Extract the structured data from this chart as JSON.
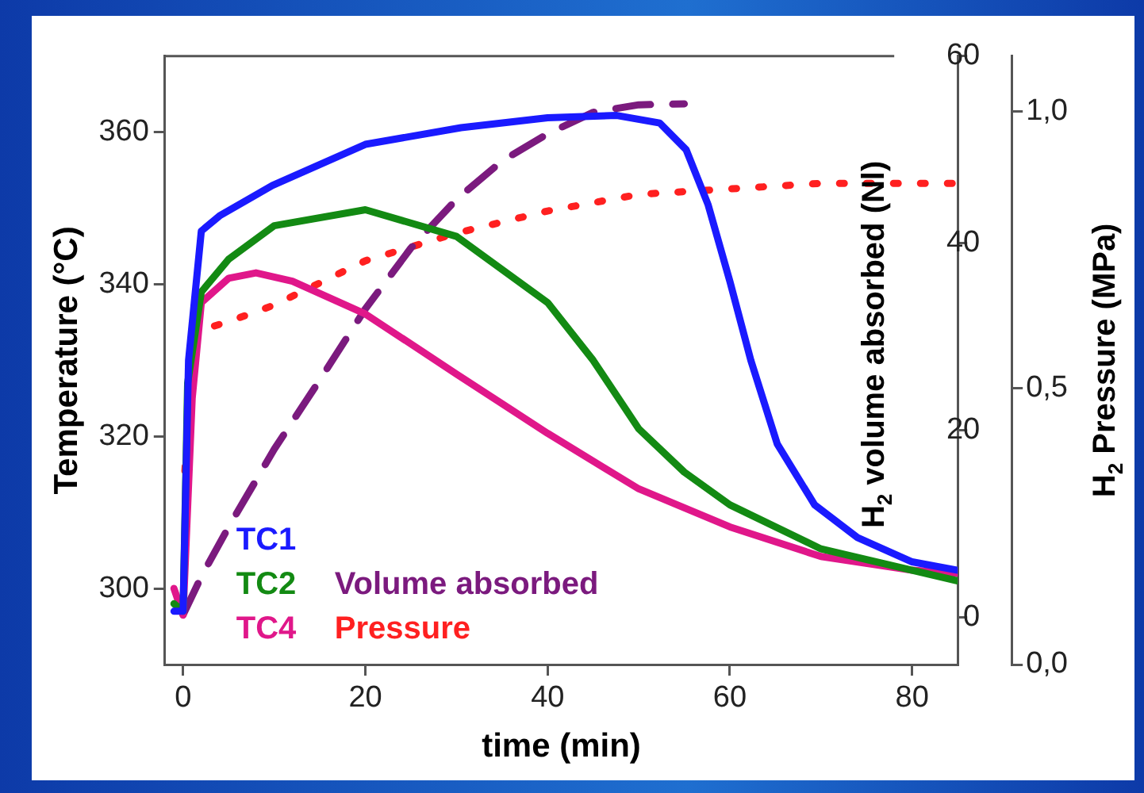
{
  "chart_data": {
    "type": "line",
    "xlabel": "time (min)",
    "ylabel": "Temperature (°C)",
    "y2label": "H$_{2}$ volume absorbed (Nl)",
    "y3label": "H$_{2}$ Pressure (MPa)",
    "xlim": [
      -2,
      85
    ],
    "xticks": [
      0,
      20,
      40,
      60,
      80
    ],
    "ylim": [
      290,
      370
    ],
    "yticks": [
      300,
      320,
      340,
      360
    ],
    "y2lim": [
      -5,
      60
    ],
    "y2ticks": [
      0,
      20,
      40,
      60
    ],
    "y3lim": [
      0,
      1.1
    ],
    "y3ticks": [
      {
        "value": 0,
        "label": "0,0"
      },
      {
        "value": 0.5,
        "label": "0,5"
      },
      {
        "value": 1,
        "label": "1,0"
      }
    ],
    "legend": "bottom left",
    "grid": false,
    "series": [
      {
        "name": "TC1",
        "color": "#1a1aff",
        "line_style": "solid",
        "x": [
          -1,
          0,
          0.6,
          2,
          4,
          9.8,
          20,
          30.5,
          40,
          47.6,
          52.3,
          55.2,
          57.6,
          60,
          62.3,
          65.2,
          69.3,
          74,
          80,
          85
        ],
        "values": [
          297,
          297,
          330,
          347,
          349,
          353,
          358.4,
          360.6,
          361.9,
          362.2,
          361.2,
          357.7,
          350.5,
          340.4,
          330,
          319,
          311,
          306.7,
          303.5,
          302.4
        ]
      },
      {
        "name": "TC2",
        "color": "#138a13",
        "line_style": "solid",
        "x": [
          -1,
          0,
          0.5,
          2,
          5,
          10,
          20,
          30,
          40,
          45,
          50,
          55,
          60,
          70,
          80,
          85
        ],
        "values": [
          298,
          297,
          327,
          339,
          343.3,
          347.7,
          349.8,
          346.3,
          337.6,
          330,
          321,
          315.3,
          311,
          305.2,
          302.4,
          301
        ]
      },
      {
        "name": "TC4",
        "color": "#e0178a",
        "line_style": "solid",
        "x": [
          -1,
          0,
          1,
          2,
          5,
          8,
          12,
          20,
          30,
          40,
          50,
          60,
          70,
          80,
          85
        ],
        "values": [
          300,
          296.5,
          325,
          337.6,
          340.8,
          341.5,
          340.4,
          336.1,
          328.2,
          320.4,
          313.1,
          308.1,
          304.2,
          302.4,
          302
        ]
      },
      {
        "name": "Volume absorbed",
        "color": "#7b1a7e",
        "line_style": "dashed",
        "axis": "y2",
        "x": [
          0,
          2,
          5,
          10,
          15,
          20,
          25,
          30,
          35,
          40,
          45,
          50,
          55
        ],
        "values": [
          0.3,
          4.4,
          9.7,
          18,
          25.4,
          33,
          39.5,
          44.7,
          48.8,
          51.7,
          54,
          54.8,
          54.9
        ]
      },
      {
        "name": "Pressure",
        "color": "#ff2020",
        "line_style": "dotted",
        "axis": "y3",
        "x": [
          0.2,
          0.5,
          1,
          5,
          10,
          15,
          20,
          30,
          40,
          50,
          60,
          70,
          85
        ],
        "values": [
          0.35,
          0.42,
          0.6,
          0.62,
          0.65,
          0.69,
          0.73,
          0.78,
          0.82,
          0.85,
          0.86,
          0.87,
          0.87
        ]
      }
    ]
  }
}
